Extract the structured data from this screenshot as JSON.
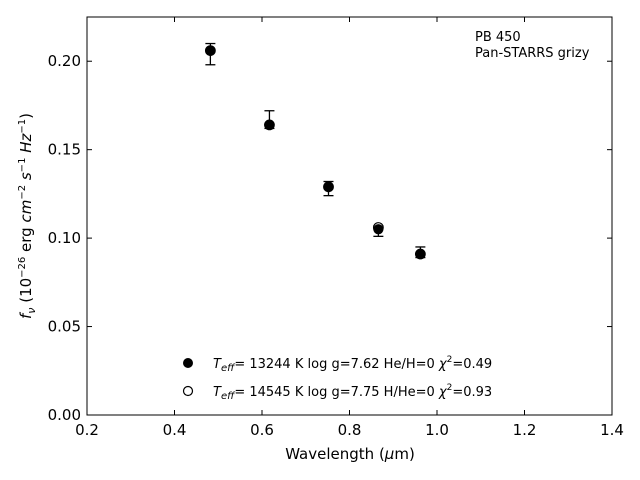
{
  "chart_data": {
    "type": "scatter",
    "xlabel": "Wavelength (μm)",
    "ylabel": "fν (10⁻²⁶ erg cm⁻² s⁻¹ Hz⁻¹)",
    "xlim": [
      0.2,
      1.4
    ],
    "ylim": [
      0.0,
      0.225
    ],
    "xticks": [
      "0.2",
      "0.4",
      "0.6",
      "0.8",
      "1.0",
      "1.2",
      "1.4"
    ],
    "yticks": [
      "0.00",
      "0.05",
      "0.10",
      "0.15",
      "0.20"
    ],
    "annotation": [
      "PB 450",
      "Pan-STARRS grizy"
    ],
    "legend_position": "lower-left",
    "observed": {
      "x": [
        0.482,
        0.617,
        0.752,
        0.866,
        0.962
      ],
      "y": [
        0.204,
        0.167,
        0.128,
        0.104,
        0.092
      ],
      "err": [
        0.006,
        0.005,
        0.004,
        0.003,
        0.003
      ]
    },
    "series": [
      {
        "name": "Teff= 13244 K  log g=7.62  He/H=0  χ²=0.49",
        "marker": "filled-circle",
        "color": "#000000",
        "x": [
          0.482,
          0.617,
          0.752,
          0.866,
          0.962
        ],
        "y": [
          0.206,
          0.164,
          0.129,
          0.105,
          0.091
        ]
      },
      {
        "name": "Teff= 14545 K  log g=7.75  H/He=0  χ²=0.93",
        "marker": "open-circle",
        "color": "#000000",
        "x": [
          0.482,
          0.617,
          0.752,
          0.866,
          0.962
        ],
        "y": [
          0.206,
          0.164,
          0.129,
          0.106,
          0.091
        ]
      }
    ]
  }
}
